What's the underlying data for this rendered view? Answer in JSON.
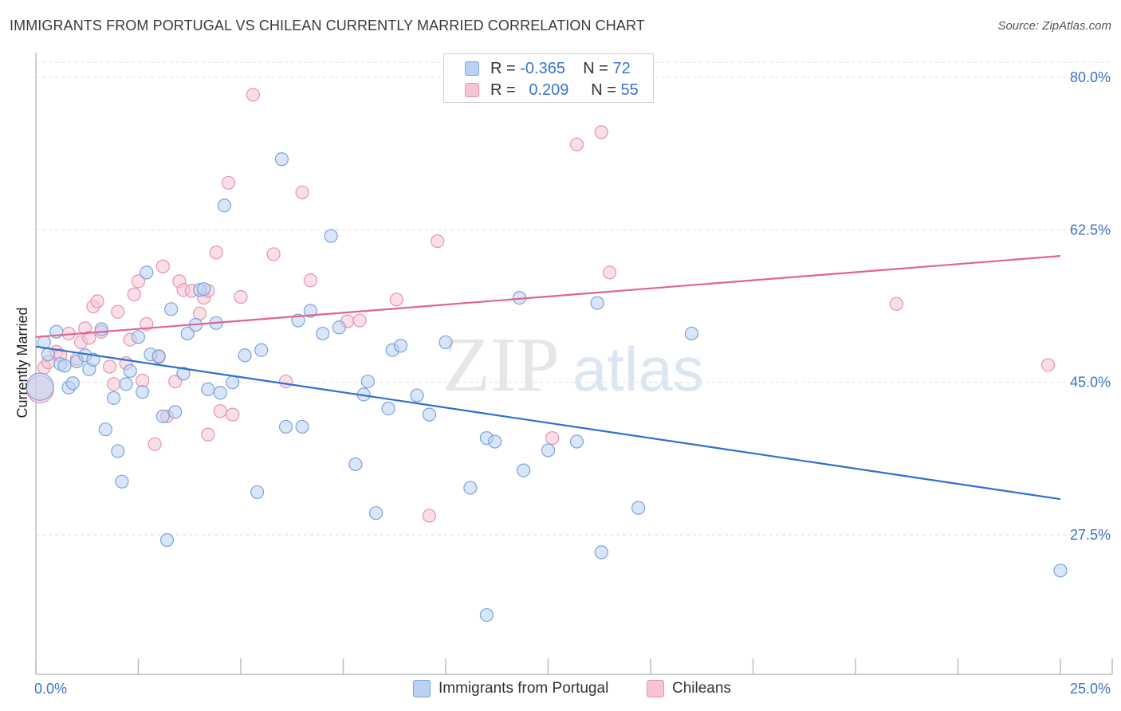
{
  "title": "IMMIGRANTS FROM PORTUGAL VS CHILEAN CURRENTLY MARRIED CORRELATION CHART",
  "source": "Source: ZipAtlas.com",
  "watermark": {
    "zip": "ZIP",
    "atlas": "atlas"
  },
  "legend": {
    "rows": [
      {
        "r_label": "R =",
        "r_value": "-0.365",
        "n_label": "N =",
        "n_value": "72"
      },
      {
        "r_label": "R =",
        "r_value": "0.209",
        "n_label": "N =",
        "n_value": "55"
      }
    ]
  },
  "bottom_legend": [
    {
      "label": "Immigrants from Portugal"
    },
    {
      "label": "Chileans"
    }
  ],
  "colors": {
    "blue_fill": "#b9d1f2",
    "blue_stroke": "#7aa3dc",
    "blue_line": "#2f6fd0",
    "pink_fill": "#f7c4d4",
    "pink_stroke": "#e693ae",
    "pink_line": "#e0648f",
    "tick_label": "#3b73c8",
    "grid": "#dddddd"
  },
  "chart_data": {
    "type": "scatter",
    "title": "IMMIGRANTS FROM PORTUGAL VS CHILEAN CURRENTLY MARRIED CORRELATION CHART",
    "xlabel": "",
    "ylabel": "Currently Married",
    "xlim": [
      0,
      25
    ],
    "ylim": [
      9.0,
      84.0
    ],
    "x_tick_labels": [
      "0.0%",
      "25.0%"
    ],
    "y_ticks": [
      27.5,
      45.0,
      62.5,
      80.0
    ],
    "y_tick_labels": [
      "27.5%",
      "45.0%",
      "62.5%",
      "80.0%"
    ],
    "grid": true,
    "legend_position": "top-center",
    "series": [
      {
        "name": "Immigrants from Portugal",
        "r": -0.365,
        "n": 72,
        "trend": {
          "x": [
            0,
            25
          ],
          "y": [
            49.1,
            31.6
          ]
        },
        "points": [
          [
            0.2,
            49.6
          ],
          [
            0.3,
            48.2
          ],
          [
            0.5,
            50.8
          ],
          [
            0.6,
            47.1
          ],
          [
            0.7,
            46.9
          ],
          [
            0.8,
            44.4
          ],
          [
            0.9,
            44.9
          ],
          [
            1.0,
            47.4
          ],
          [
            1.2,
            48.1
          ],
          [
            1.3,
            46.5
          ],
          [
            1.4,
            47.6
          ],
          [
            1.6,
            51.1
          ],
          [
            1.7,
            39.6
          ],
          [
            1.9,
            43.2
          ],
          [
            2.0,
            37.1
          ],
          [
            2.1,
            33.6
          ],
          [
            2.2,
            44.8
          ],
          [
            2.3,
            46.3
          ],
          [
            2.5,
            50.2
          ],
          [
            2.6,
            43.9
          ],
          [
            2.7,
            57.6
          ],
          [
            2.8,
            48.2
          ],
          [
            3.0,
            48.0
          ],
          [
            3.1,
            41.1
          ],
          [
            3.2,
            26.9
          ],
          [
            3.3,
            53.4
          ],
          [
            3.4,
            41.6
          ],
          [
            3.6,
            46.0
          ],
          [
            3.7,
            50.6
          ],
          [
            3.9,
            51.6
          ],
          [
            4.0,
            55.6
          ],
          [
            4.1,
            55.7
          ],
          [
            4.2,
            44.2
          ],
          [
            4.4,
            51.8
          ],
          [
            4.5,
            43.8
          ],
          [
            4.6,
            65.3
          ],
          [
            4.8,
            45.0
          ],
          [
            5.1,
            48.1
          ],
          [
            5.4,
            32.4
          ],
          [
            5.5,
            48.7
          ],
          [
            6.0,
            70.6
          ],
          [
            6.1,
            39.9
          ],
          [
            6.4,
            52.1
          ],
          [
            6.5,
            39.9
          ],
          [
            6.7,
            53.2
          ],
          [
            7.0,
            50.6
          ],
          [
            7.2,
            61.8
          ],
          [
            7.4,
            51.3
          ],
          [
            7.8,
            35.6
          ],
          [
            8.0,
            43.6
          ],
          [
            8.1,
            45.1
          ],
          [
            8.3,
            30.0
          ],
          [
            8.6,
            42.0
          ],
          [
            8.7,
            48.7
          ],
          [
            8.9,
            49.2
          ],
          [
            9.3,
            43.5
          ],
          [
            9.6,
            41.3
          ],
          [
            10.0,
            49.6
          ],
          [
            10.6,
            32.9
          ],
          [
            11.0,
            38.6
          ],
          [
            11.2,
            38.2
          ],
          [
            11.8,
            54.7
          ],
          [
            11.9,
            34.9
          ],
          [
            12.5,
            37.2
          ],
          [
            13.2,
            38.2
          ],
          [
            13.7,
            54.1
          ],
          [
            13.8,
            25.5
          ],
          [
            14.7,
            30.6
          ],
          [
            16.0,
            50.6
          ],
          [
            11.0,
            18.3
          ],
          [
            25.0,
            23.4
          ],
          [
            0.1,
            44.5
          ]
        ]
      },
      {
        "name": "Chileans",
        "r": 0.209,
        "n": 55,
        "trend": {
          "x": [
            0,
            25
          ],
          "y": [
            50.2,
            59.5
          ]
        },
        "points": [
          [
            0.1,
            44.2
          ],
          [
            0.2,
            46.7
          ],
          [
            0.3,
            47.3
          ],
          [
            0.5,
            48.5
          ],
          [
            0.6,
            48.1
          ],
          [
            0.8,
            50.6
          ],
          [
            1.0,
            47.7
          ],
          [
            1.1,
            49.6
          ],
          [
            1.2,
            51.2
          ],
          [
            1.3,
            50.1
          ],
          [
            1.4,
            53.7
          ],
          [
            1.5,
            54.3
          ],
          [
            1.6,
            50.8
          ],
          [
            1.8,
            46.8
          ],
          [
            1.9,
            44.8
          ],
          [
            2.0,
            53.1
          ],
          [
            2.2,
            47.2
          ],
          [
            2.3,
            49.9
          ],
          [
            2.4,
            55.1
          ],
          [
            2.5,
            56.6
          ],
          [
            2.6,
            45.2
          ],
          [
            2.7,
            51.7
          ],
          [
            2.9,
            37.9
          ],
          [
            3.0,
            47.9
          ],
          [
            3.1,
            58.3
          ],
          [
            3.2,
            41.1
          ],
          [
            3.4,
            45.1
          ],
          [
            3.5,
            56.6
          ],
          [
            3.6,
            55.6
          ],
          [
            3.8,
            55.5
          ],
          [
            4.0,
            52.9
          ],
          [
            4.1,
            54.7
          ],
          [
            4.2,
            39.0
          ],
          [
            4.4,
            59.9
          ],
          [
            4.5,
            41.7
          ],
          [
            4.7,
            67.9
          ],
          [
            4.8,
            41.3
          ],
          [
            5.0,
            54.8
          ],
          [
            5.3,
            78.0
          ],
          [
            5.8,
            59.7
          ],
          [
            6.1,
            45.1
          ],
          [
            6.5,
            66.8
          ],
          [
            6.7,
            56.7
          ],
          [
            7.6,
            52.0
          ],
          [
            7.9,
            52.1
          ],
          [
            8.8,
            54.5
          ],
          [
            9.6,
            29.7
          ],
          [
            9.8,
            61.2
          ],
          [
            12.6,
            38.6
          ],
          [
            13.2,
            72.3
          ],
          [
            13.8,
            73.7
          ],
          [
            14.0,
            57.6
          ],
          [
            21.0,
            54.0
          ],
          [
            24.7,
            47.0
          ],
          [
            4.2,
            55.5
          ]
        ]
      }
    ]
  }
}
